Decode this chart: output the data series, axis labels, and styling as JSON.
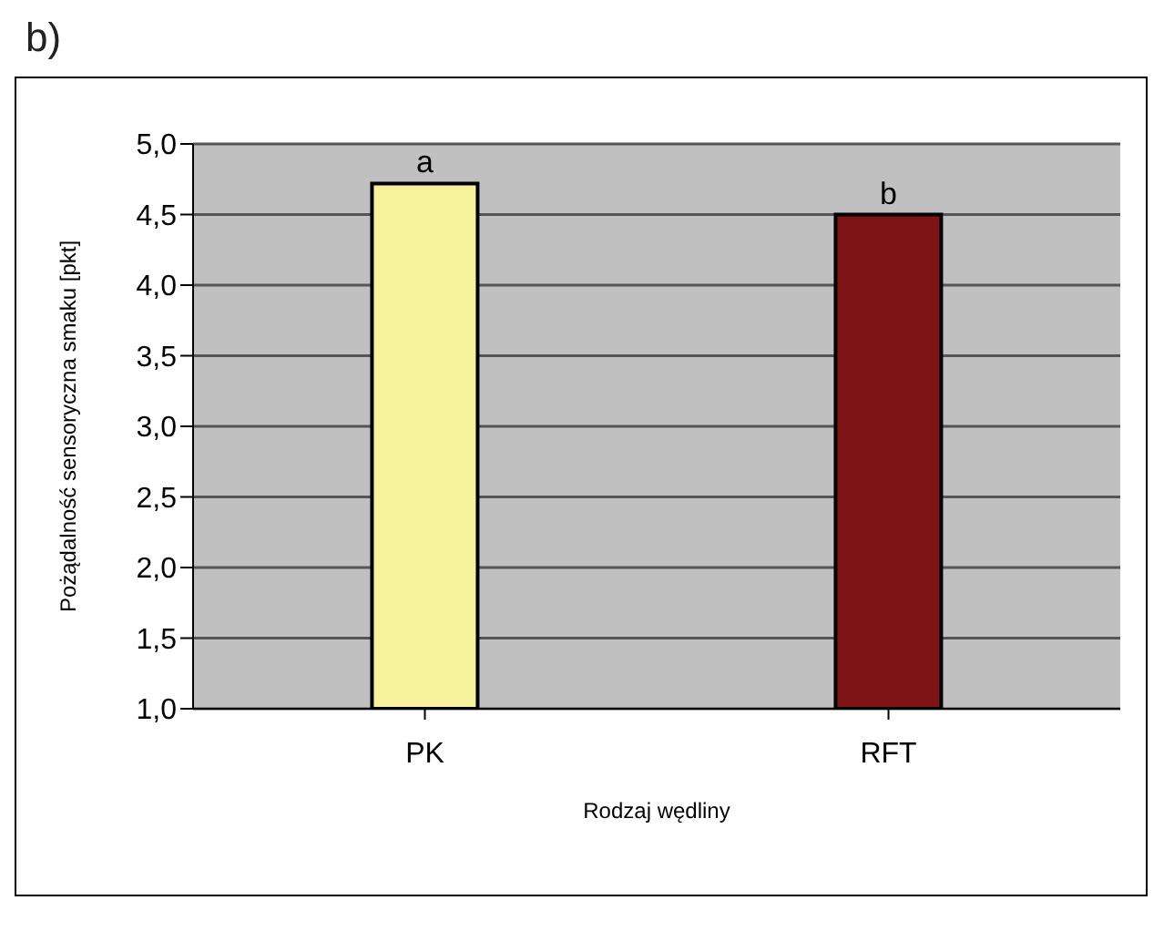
{
  "chart_data": {
    "type": "bar",
    "title": "b)",
    "xlabel": "Rodzaj wędliny",
    "ylabel": "Pożądalność sensoryczna smaku [pkt]",
    "categories": [
      "PK",
      "RFT"
    ],
    "values": [
      4.72,
      4.5
    ],
    "colors": [
      "#f5f29b",
      "#7f1416"
    ],
    "ylim": [
      1,
      5
    ],
    "yticks": [
      {
        "value": 1,
        "label": "1,0"
      },
      {
        "value": 1.5,
        "label": "1,5"
      },
      {
        "value": 2,
        "label": "2,0"
      },
      {
        "value": 2.5,
        "label": "2,5"
      },
      {
        "value": 3,
        "label": "3,0"
      },
      {
        "value": 3.5,
        "label": "3,5"
      },
      {
        "value": 4,
        "label": "4,0"
      },
      {
        "value": 4.5,
        "label": "4,5"
      },
      {
        "value": 5,
        "label": "5,0"
      }
    ],
    "grid": "y",
    "annotations": [
      {
        "text": "a",
        "x": "PK",
        "y": 4.72
      },
      {
        "text": "b",
        "x": "RFT",
        "y": 4.5
      }
    ]
  }
}
